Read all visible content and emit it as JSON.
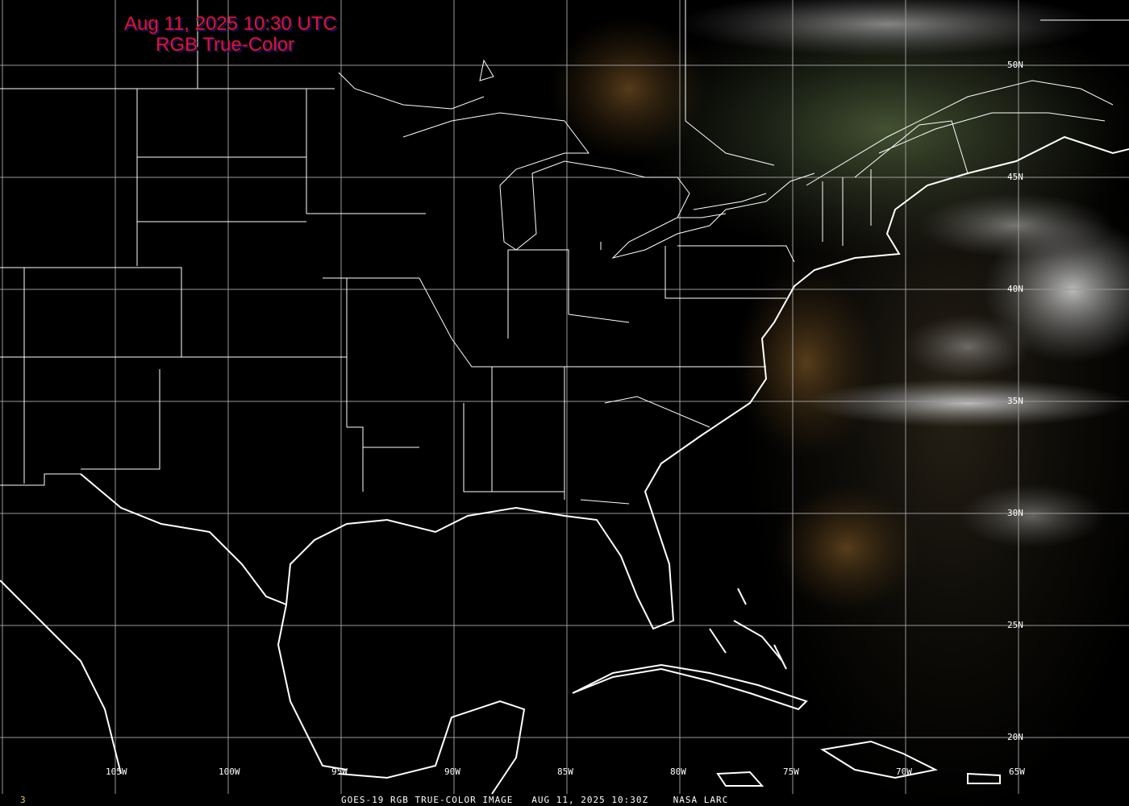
{
  "title": {
    "line1": "Aug 11, 2025 10:30 UTC",
    "line2": "RGB True-Color"
  },
  "longitude_labels": [
    "105W",
    "100W",
    "95W",
    "90W",
    "85W",
    "80W",
    "75W",
    "70W",
    "65W"
  ],
  "latitude_labels": [
    "50N",
    "45N",
    "40N",
    "35N",
    "30N",
    "25N",
    "20N"
  ],
  "footer": {
    "frame_number": "3",
    "caption": "GOES-19 RGB TRUE-COLOR IMAGE   AUG 11, 2025 10:30Z    NASA LARC"
  },
  "colors": {
    "title": "#e0142e",
    "grid": "#9a9a9a",
    "outlines": "#ffffff",
    "frame_number": "#e8d060"
  }
}
